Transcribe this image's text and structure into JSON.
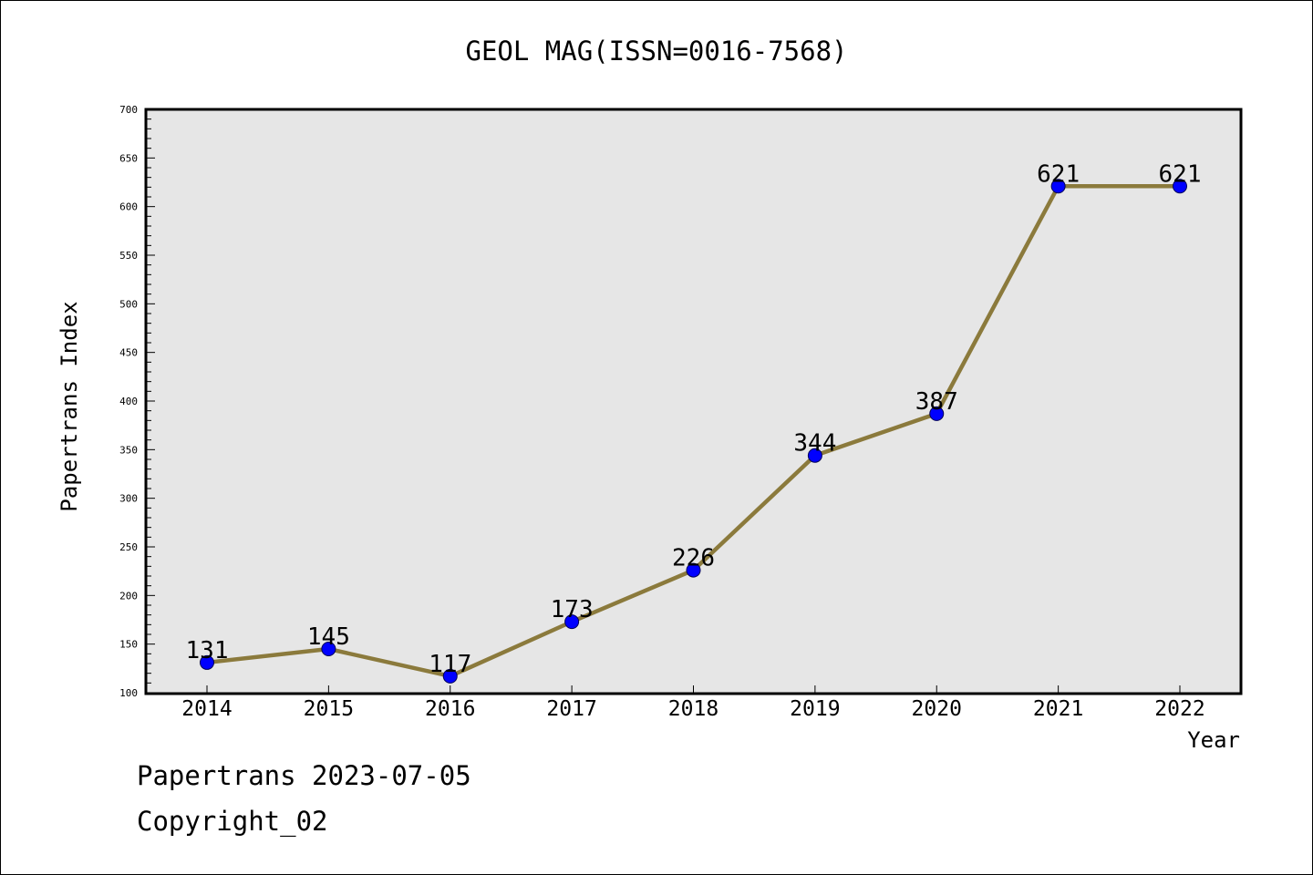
{
  "chart_data": {
    "type": "line",
    "title": "GEOL MAG(ISSN=0016-7568)",
    "xlabel": "Year",
    "ylabel": "Papertrans Index",
    "categories": [
      "2014",
      "2015",
      "2016",
      "2017",
      "2018",
      "2019",
      "2020",
      "2021",
      "2022"
    ],
    "values": [
      131,
      145,
      117,
      173,
      226,
      344,
      387,
      621,
      621
    ],
    "data_labels": [
      "131",
      "145",
      "117",
      "173",
      "226",
      "344",
      "387",
      "621",
      "621"
    ],
    "ylim": [
      100,
      700
    ],
    "y_ticks": [
      "100",
      "150",
      "200",
      "250",
      "300",
      "350",
      "400",
      "450",
      "500",
      "550",
      "600",
      "650",
      "700"
    ],
    "grid": false,
    "colors": {
      "plot_background": "#e6e6e6",
      "line": "#8b7a3c",
      "marker": "#0000ff"
    }
  },
  "footer": {
    "line1": "Papertrans 2023-07-05",
    "line2": "Copyright_02"
  }
}
